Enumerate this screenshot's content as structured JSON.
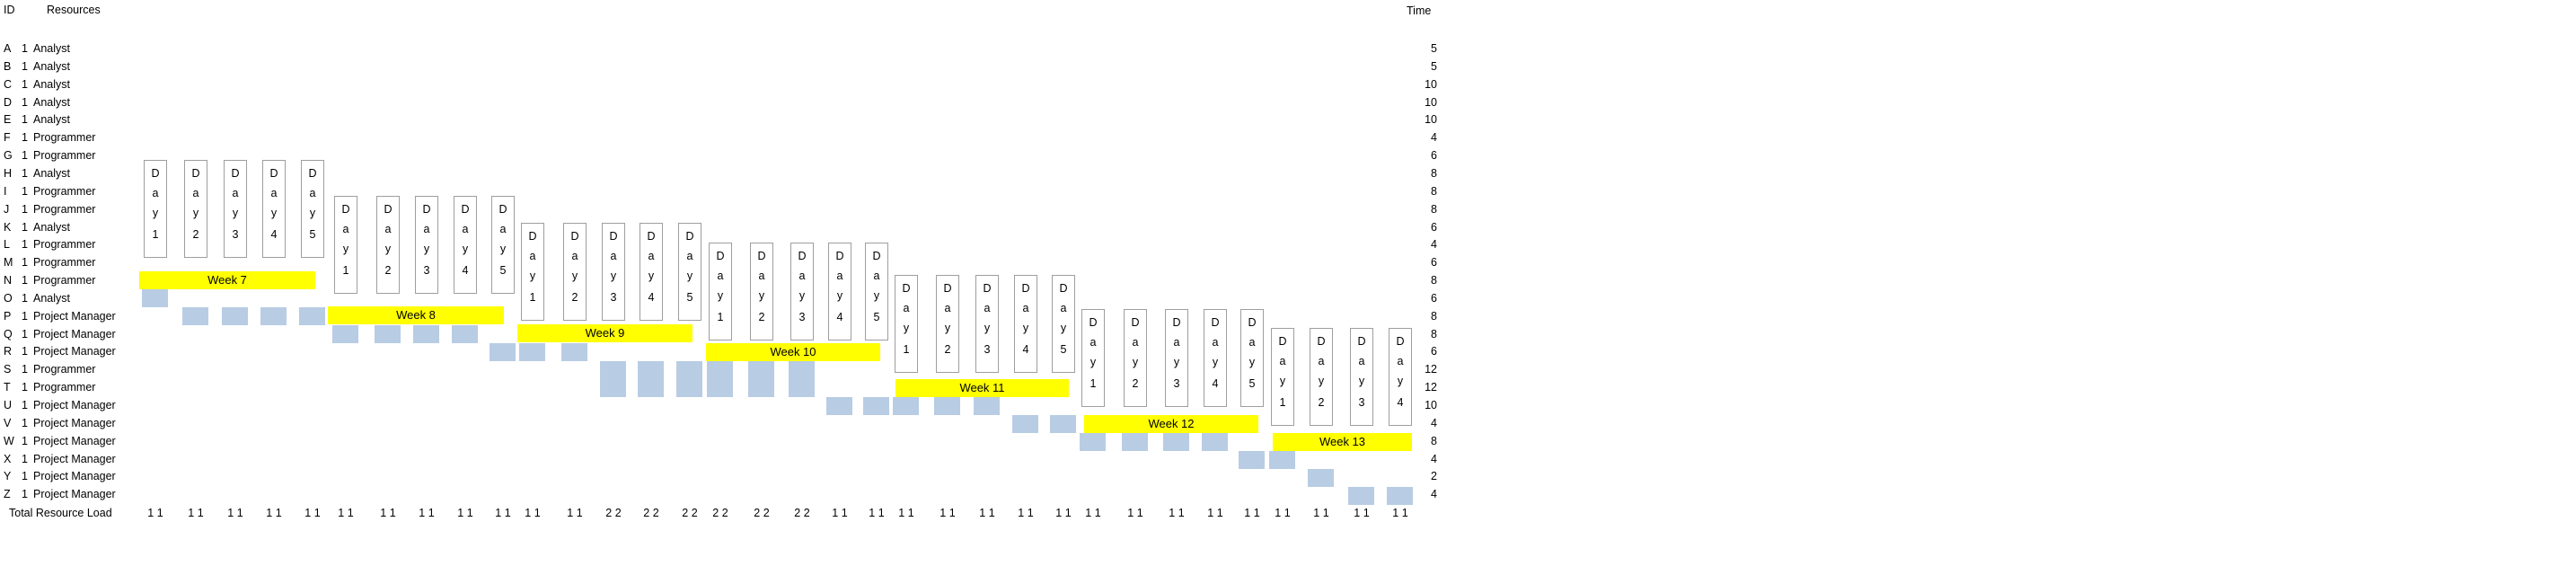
{
  "headers": {
    "id": "ID",
    "resources": "Resources",
    "time": "Time"
  },
  "rows": [
    {
      "id": "A",
      "qty": "1",
      "role": "Analyst",
      "time": "5"
    },
    {
      "id": "B",
      "qty": "1",
      "role": "Analyst",
      "time": "5"
    },
    {
      "id": "C",
      "qty": "1",
      "role": "Analyst",
      "time": "10"
    },
    {
      "id": "D",
      "qty": "1",
      "role": "Analyst",
      "time": "10"
    },
    {
      "id": "E",
      "qty": "1",
      "role": "Analyst",
      "time": "10"
    },
    {
      "id": "F",
      "qty": "1",
      "role": "Programmer",
      "time": "4"
    },
    {
      "id": "G",
      "qty": "1",
      "role": "Programmer",
      "time": "6"
    },
    {
      "id": "H",
      "qty": "1",
      "role": "Analyst",
      "time": "8"
    },
    {
      "id": "I",
      "qty": "1",
      "role": "Programmer",
      "time": "8"
    },
    {
      "id": "J",
      "qty": "1",
      "role": "Programmer",
      "time": "8"
    },
    {
      "id": "K",
      "qty": "1",
      "role": "Analyst",
      "time": "6"
    },
    {
      "id": "L",
      "qty": "1",
      "role": "Programmer",
      "time": "4"
    },
    {
      "id": "M",
      "qty": "1",
      "role": "Programmer",
      "time": "6"
    },
    {
      "id": "N",
      "qty": "1",
      "role": "Programmer",
      "time": "8"
    },
    {
      "id": "O",
      "qty": "1",
      "role": "Analyst",
      "time": "6"
    },
    {
      "id": "P",
      "qty": "1",
      "role": "Project Manager",
      "time": "8"
    },
    {
      "id": "Q",
      "qty": "1",
      "role": "Project Manager",
      "time": "8"
    },
    {
      "id": "R",
      "qty": "1",
      "role": "Project Manager",
      "time": "6"
    },
    {
      "id": "S",
      "qty": "1",
      "role": "Programmer",
      "time": "12"
    },
    {
      "id": "T",
      "qty": "1",
      "role": "Programmer",
      "time": "12"
    },
    {
      "id": "U",
      "qty": "1",
      "role": "Project Manager",
      "time": "10"
    },
    {
      "id": "V",
      "qty": "1",
      "role": "Project Manager",
      "time": "4"
    },
    {
      "id": "W",
      "qty": "1",
      "role": "Project Manager",
      "time": "8"
    },
    {
      "id": "X",
      "qty": "1",
      "role": "Project Manager",
      "time": "4"
    },
    {
      "id": "Y",
      "qty": "1",
      "role": "Project Manager",
      "time": "2"
    },
    {
      "id": "Z",
      "qty": "1",
      "role": "Project Manager",
      "time": "4"
    }
  ],
  "day_glyphs": [
    "D",
    "a",
    "y"
  ],
  "weeks": [
    {
      "label": "Week 7",
      "days": [
        "1",
        "2",
        "3",
        "4",
        "5"
      ]
    },
    {
      "label": "Week 8",
      "days": [
        "1",
        "2",
        "3",
        "4",
        "5"
      ]
    },
    {
      "label": "Week 9",
      "days": [
        "1",
        "2",
        "3",
        "4",
        "5"
      ]
    },
    {
      "label": "Week 10",
      "days": [
        "1",
        "2",
        "3",
        "4",
        "5"
      ]
    },
    {
      "label": "Week 11",
      "days": [
        "1",
        "2",
        "3",
        "4",
        "5"
      ]
    },
    {
      "label": "Week 12",
      "days": [
        "1",
        "2",
        "3",
        "4",
        "5"
      ]
    },
    {
      "label": "Week 13",
      "days": [
        "1",
        "2",
        "3",
        "4"
      ]
    }
  ],
  "total_label": "Total Resource Load",
  "totals": [
    "1 1",
    "1 1",
    "1 1",
    "1 1",
    "1 1",
    "1 1",
    "1 1",
    "1 1",
    "1 1",
    "1 1",
    "1 1",
    "1 1",
    "2 2",
    "2 2",
    "2 2",
    "2 2",
    "2 2",
    "2 2",
    "1 1",
    "1 1",
    "1 1",
    "1 1",
    "1 1",
    "1 1",
    "1 1",
    "1 1",
    "1 1",
    "1 1",
    "1 1",
    "1 1",
    "1 1",
    "1 1",
    "1 1",
    "1 1"
  ],
  "colors": {
    "week_bar": "#ffff00",
    "task_block": "#b8cce4",
    "day_border": "#9e9e9e"
  }
}
